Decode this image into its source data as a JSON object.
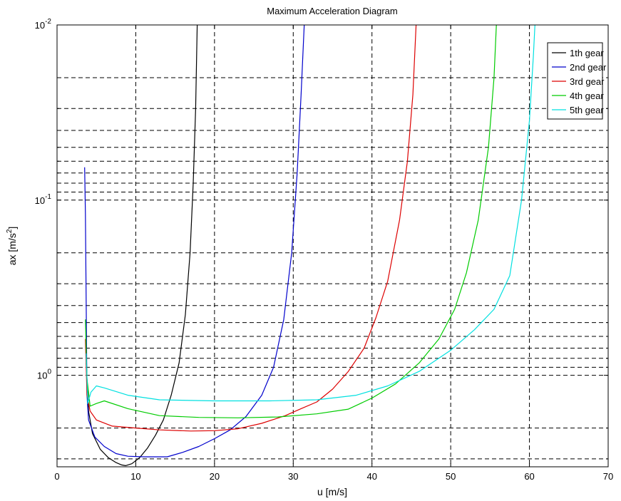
{
  "chart_data": {
    "type": "line",
    "title": "Maximum Acceleration Diagram",
    "xlabel": "u [m/s]",
    "ylabel": "ax [m/s2]",
    "ylabel_base": "ax [m/s",
    "ylabel_sup": "2",
    "ylabel_end": "]",
    "xlim": [
      0,
      70
    ],
    "x_ticks": [
      0,
      10,
      20,
      30,
      40,
      50,
      60,
      70
    ],
    "x_tick_labels": [
      "0",
      "10",
      "20",
      "30",
      "40",
      "50",
      "60",
      "70"
    ],
    "y_scale": "log",
    "y_direction": "reversed",
    "ylim": [
      0.01,
      3.33
    ],
    "y_major_ticks": [
      {
        "value": 0.01,
        "base": "10",
        "exp": "-2"
      },
      {
        "value": 0.1,
        "base": "10",
        "exp": "-1"
      },
      {
        "value": 1,
        "base": "10",
        "exp": "0"
      }
    ],
    "grid": true,
    "legend_position": "top-right",
    "series": [
      {
        "name": "1th gear",
        "color": "#000000",
        "points": [
          [
            3.7,
            0.85
          ],
          [
            4.0,
            1.6
          ],
          [
            4.5,
            2.15
          ],
          [
            5.5,
            2.65
          ],
          [
            6.5,
            2.95
          ],
          [
            7.5,
            3.15
          ],
          [
            8.2,
            3.25
          ],
          [
            8.7,
            3.28
          ],
          [
            9.5,
            3.2
          ],
          [
            10.5,
            2.95
          ],
          [
            11.5,
            2.6
          ],
          [
            12.5,
            2.2
          ],
          [
            13.5,
            1.8
          ],
          [
            14.5,
            1.3
          ],
          [
            15.5,
            0.85
          ],
          [
            16.3,
            0.45
          ],
          [
            16.9,
            0.2
          ],
          [
            17.3,
            0.08
          ],
          [
            17.6,
            0.03
          ],
          [
            17.8,
            0.01
          ]
        ]
      },
      {
        "name": "2nd gear",
        "color": "#0000cc",
        "points": [
          [
            3.5,
            0.065
          ],
          [
            3.6,
            0.12
          ],
          [
            3.8,
            1.3
          ],
          [
            4.0,
            1.8
          ],
          [
            4.8,
            2.25
          ],
          [
            6.0,
            2.55
          ],
          [
            7.5,
            2.8
          ],
          [
            9.0,
            2.9
          ],
          [
            11.0,
            2.92
          ],
          [
            14.0,
            2.92
          ],
          [
            16.0,
            2.75
          ],
          [
            18.0,
            2.55
          ],
          [
            20.0,
            2.3
          ],
          [
            22.0,
            2.05
          ],
          [
            24.0,
            1.72
          ],
          [
            26.0,
            1.3
          ],
          [
            27.5,
            0.9
          ],
          [
            28.8,
            0.48
          ],
          [
            29.8,
            0.2
          ],
          [
            30.5,
            0.07
          ],
          [
            31.0,
            0.025
          ],
          [
            31.4,
            0.01
          ]
        ]
      },
      {
        "name": "3rd gear",
        "color": "#dd0000",
        "points": [
          [
            3.6,
            0.62
          ],
          [
            3.8,
            1.3
          ],
          [
            4.2,
            1.6
          ],
          [
            5.0,
            1.8
          ],
          [
            7.0,
            1.95
          ],
          [
            10.0,
            2.0
          ],
          [
            13.0,
            2.05
          ],
          [
            17.0,
            2.08
          ],
          [
            20.0,
            2.07
          ],
          [
            23.0,
            2.02
          ],
          [
            26.0,
            1.88
          ],
          [
            29.0,
            1.7
          ],
          [
            31.0,
            1.55
          ],
          [
            33.0,
            1.42
          ],
          [
            35.0,
            1.2
          ],
          [
            37.0,
            0.95
          ],
          [
            39.0,
            0.7
          ],
          [
            40.5,
            0.47
          ],
          [
            42.0,
            0.29
          ],
          [
            43.5,
            0.13
          ],
          [
            44.5,
            0.06
          ],
          [
            45.2,
            0.025
          ],
          [
            45.6,
            0.01
          ]
        ]
      },
      {
        "name": "4th gear",
        "color": "#00cc00",
        "points": [
          [
            3.6,
            0.48
          ],
          [
            3.8,
            1.05
          ],
          [
            4.2,
            1.5
          ],
          [
            5.0,
            1.45
          ],
          [
            6.0,
            1.4
          ],
          [
            9.0,
            1.55
          ],
          [
            13.0,
            1.7
          ],
          [
            18.0,
            1.74
          ],
          [
            23.0,
            1.75
          ],
          [
            28.0,
            1.73
          ],
          [
            33.0,
            1.66
          ],
          [
            37.0,
            1.56
          ],
          [
            40.0,
            1.35
          ],
          [
            43.0,
            1.12
          ],
          [
            46.0,
            0.85
          ],
          [
            48.5,
            0.62
          ],
          [
            50.5,
            0.42
          ],
          [
            52.0,
            0.26
          ],
          [
            53.5,
            0.13
          ],
          [
            54.8,
            0.05
          ],
          [
            55.5,
            0.02
          ],
          [
            55.8,
            0.01
          ]
        ]
      },
      {
        "name": "5th gear",
        "color": "#00e0e0",
        "points": [
          [
            3.7,
            0.75
          ],
          [
            3.9,
            1.45
          ],
          [
            4.3,
            1.25
          ],
          [
            5.0,
            1.15
          ],
          [
            6.0,
            1.18
          ],
          [
            9.0,
            1.3
          ],
          [
            13.0,
            1.38
          ],
          [
            20.0,
            1.4
          ],
          [
            27.0,
            1.4
          ],
          [
            33.0,
            1.38
          ],
          [
            38.0,
            1.3
          ],
          [
            42.0,
            1.15
          ],
          [
            46.0,
            0.95
          ],
          [
            50.0,
            0.72
          ],
          [
            53.0,
            0.55
          ],
          [
            55.5,
            0.42
          ],
          [
            57.5,
            0.27
          ],
          [
            59.0,
            0.1
          ],
          [
            60.0,
            0.035
          ],
          [
            60.5,
            0.015
          ],
          [
            60.7,
            0.01
          ]
        ]
      }
    ]
  }
}
